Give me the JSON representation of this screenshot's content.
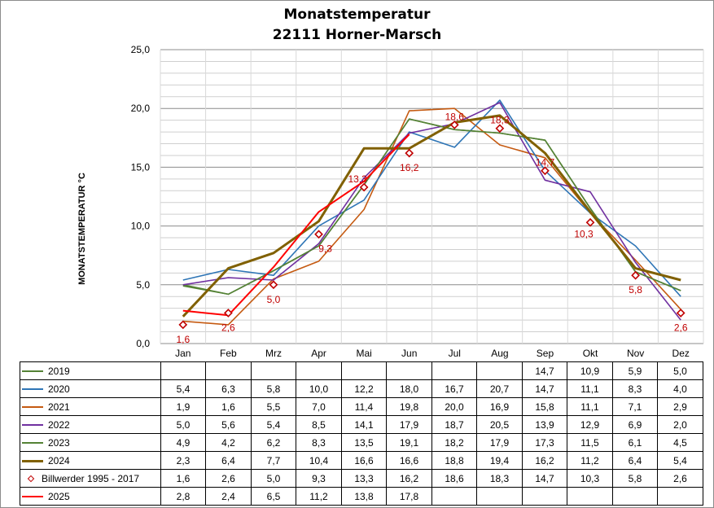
{
  "title_line1": "Monatstemperatur",
  "title_line2": "22111 Horner-Marsch",
  "chart_data": {
    "type": "line",
    "ylabel": "MONATSTEMPERATUR  °C",
    "ylim": [
      0,
      25
    ],
    "yticks": [
      "0,0",
      "5,0",
      "10,0",
      "15,0",
      "20,0",
      "25,0"
    ],
    "categories": [
      "Jan",
      "Feb",
      "Mrz",
      "Apr",
      "Mai",
      "Jun",
      "Jul",
      "Aug",
      "Sep",
      "Okt",
      "Nov",
      "Dez"
    ],
    "grid": true,
    "legend": "data table below chart",
    "series": [
      {
        "name": "2019",
        "color": "#548235",
        "width": 1.6,
        "values": [
          null,
          null,
          null,
          null,
          null,
          null,
          null,
          null,
          14.7,
          10.9,
          5.9,
          5.0
        ],
        "labels": [
          "",
          "",
          "",
          "",
          "",
          "",
          "",
          "",
          "14,7",
          "10,9",
          "5,9",
          "5,0"
        ],
        "line_values": [
          5.0,
          4.2,
          6.2,
          8.3,
          13.5,
          19.1,
          18.2,
          17.9,
          17.3,
          11.5,
          6.1,
          4.5
        ]
      },
      {
        "name": "2020",
        "color": "#2e75b6",
        "width": 1.6,
        "values": [
          5.4,
          6.3,
          5.8,
          10.0,
          12.2,
          18.0,
          16.7,
          20.7,
          14.7,
          11.1,
          8.3,
          4.0
        ],
        "labels": [
          "5,4",
          "6,3",
          "5,8",
          "10,0",
          "12,2",
          "18,0",
          "16,7",
          "20,7",
          "14,7",
          "11,1",
          "8,3",
          "4,0"
        ]
      },
      {
        "name": "2021",
        "color": "#c55a11",
        "width": 1.6,
        "values": [
          1.9,
          1.6,
          5.5,
          7.0,
          11.4,
          19.8,
          20.0,
          16.9,
          15.8,
          11.1,
          7.1,
          2.9
        ],
        "labels": [
          "1,9",
          "1,6",
          "5,5",
          "7,0",
          "11,4",
          "19,8",
          "20,0",
          "16,9",
          "15,8",
          "11,1",
          "7,1",
          "2,9"
        ]
      },
      {
        "name": "2022",
        "color": "#7030a0",
        "width": 1.6,
        "values": [
          5.0,
          5.6,
          5.4,
          8.5,
          14.1,
          17.9,
          18.7,
          20.5,
          13.9,
          12.9,
          6.9,
          2.0
        ],
        "labels": [
          "5,0",
          "5,6",
          "5,4",
          "8,5",
          "14,1",
          "17,9",
          "18,7",
          "20,5",
          "13,9",
          "12,9",
          "6,9",
          "2,0"
        ]
      },
      {
        "name": "2023",
        "color": "#548235",
        "width": 1.6,
        "values": [
          4.9,
          4.2,
          6.2,
          8.3,
          13.5,
          19.1,
          18.2,
          17.9,
          17.3,
          11.5,
          6.1,
          4.5
        ],
        "labels": [
          "4,9",
          "4,2",
          "6,2",
          "8,3",
          "13,5",
          "19,1",
          "18,2",
          "17,9",
          "17,3",
          "11,5",
          "6,1",
          "4,5"
        ]
      },
      {
        "name": "2024",
        "color": "#806000",
        "width": 3,
        "values": [
          2.3,
          6.4,
          7.7,
          10.4,
          16.6,
          16.6,
          18.8,
          19.4,
          16.2,
          11.2,
          6.4,
          5.4
        ],
        "labels": [
          "2,3",
          "6,4",
          "7,7",
          "10,4",
          "16,6",
          "16,6",
          "18,8",
          "19,4",
          "16,2",
          "11,2",
          "6,4",
          "5,4"
        ]
      },
      {
        "name": "Billwerder 1995 - 2017",
        "color": "#c00000",
        "marker": "diamond",
        "values": [
          1.6,
          2.6,
          5.0,
          9.3,
          13.3,
          16.2,
          18.6,
          18.3,
          14.7,
          10.3,
          5.8,
          2.6
        ],
        "labels": [
          "1,6",
          "2,6",
          "5,0",
          "9,3",
          "13,3",
          "16,2",
          "18,6",
          "18,3",
          "14,7",
          "10,3",
          "5,8",
          "2,6"
        ]
      },
      {
        "name": "2025",
        "color": "#ff0000",
        "width": 2,
        "values": [
          2.8,
          2.4,
          6.5,
          11.2,
          13.8,
          17.8,
          null,
          null,
          null,
          null,
          null,
          null
        ],
        "labels": [
          "2,8",
          "2,4",
          "6,5",
          "11,2",
          "13,8",
          "17,8",
          "",
          "",
          "",
          "",
          "",
          ""
        ]
      }
    ]
  }
}
